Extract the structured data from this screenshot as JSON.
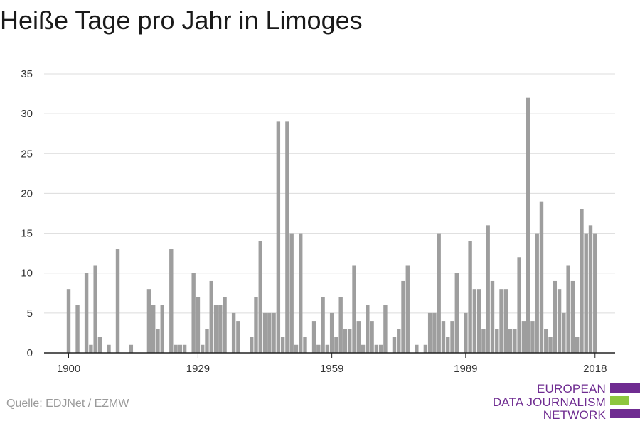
{
  "chart_data": {
    "type": "bar",
    "title": "Heiße Tage pro Jahr in Limoges",
    "xlabel": "",
    "ylabel": "",
    "ylim": [
      0,
      35
    ],
    "xlim": [
      1894.5,
      2022.5
    ],
    "yticks": [
      0,
      5,
      10,
      15,
      20,
      25,
      30,
      35
    ],
    "xticks": [
      1900,
      1929,
      1959,
      1989,
      2018
    ],
    "grid": true,
    "bar_color": "#9e9e9e",
    "x": [
      1900,
      1901,
      1902,
      1903,
      1904,
      1905,
      1906,
      1907,
      1908,
      1909,
      1910,
      1911,
      1912,
      1913,
      1914,
      1915,
      1916,
      1917,
      1918,
      1919,
      1920,
      1921,
      1922,
      1923,
      1924,
      1925,
      1926,
      1927,
      1928,
      1929,
      1930,
      1931,
      1932,
      1933,
      1934,
      1935,
      1936,
      1937,
      1938,
      1939,
      1940,
      1941,
      1942,
      1943,
      1944,
      1945,
      1946,
      1947,
      1948,
      1949,
      1950,
      1951,
      1952,
      1953,
      1954,
      1955,
      1956,
      1957,
      1958,
      1959,
      1960,
      1961,
      1962,
      1963,
      1964,
      1965,
      1966,
      1967,
      1968,
      1969,
      1970,
      1971,
      1972,
      1973,
      1974,
      1975,
      1976,
      1977,
      1978,
      1979,
      1980,
      1981,
      1982,
      1983,
      1984,
      1985,
      1986,
      1987,
      1988,
      1989,
      1990,
      1991,
      1992,
      1993,
      1994,
      1995,
      1996,
      1997,
      1998,
      1999,
      2000,
      2001,
      2002,
      2003,
      2004,
      2005,
      2006,
      2007,
      2008,
      2009,
      2010,
      2011,
      2012,
      2013,
      2014,
      2015,
      2016,
      2017,
      2018
    ],
    "values": [
      8,
      0,
      6,
      0,
      10,
      1,
      11,
      2,
      0,
      1,
      0,
      13,
      0,
      0,
      1,
      0,
      0,
      0,
      8,
      6,
      3,
      6,
      0,
      13,
      1,
      1,
      1,
      0,
      10,
      7,
      1,
      3,
      9,
      6,
      6,
      7,
      0,
      5,
      4,
      0,
      0,
      2,
      7,
      14,
      5,
      5,
      5,
      29,
      2,
      29,
      15,
      1,
      15,
      2,
      0,
      4,
      1,
      7,
      1,
      5,
      2,
      7,
      3,
      3,
      11,
      4,
      1,
      6,
      4,
      1,
      1,
      6,
      0,
      2,
      3,
      9,
      11,
      0,
      1,
      0,
      1,
      5,
      5,
      15,
      4,
      2,
      4,
      10,
      0,
      5,
      14,
      8,
      8,
      3,
      16,
      9,
      3,
      8,
      8,
      3,
      3,
      12,
      4,
      32,
      4,
      15,
      19,
      3,
      2,
      9,
      8,
      5,
      11,
      9,
      2,
      18,
      15,
      16,
      15
    ]
  },
  "source": "Quelle: EDJNet / EZMW",
  "logo": {
    "lines": [
      "EUROPEAN",
      "DATA JOURNALISM",
      "NETWORK"
    ],
    "text_color": "#6f2c91",
    "bar_colors": [
      "#6f2c91",
      "#8dc63f",
      "#6f2c91"
    ]
  }
}
